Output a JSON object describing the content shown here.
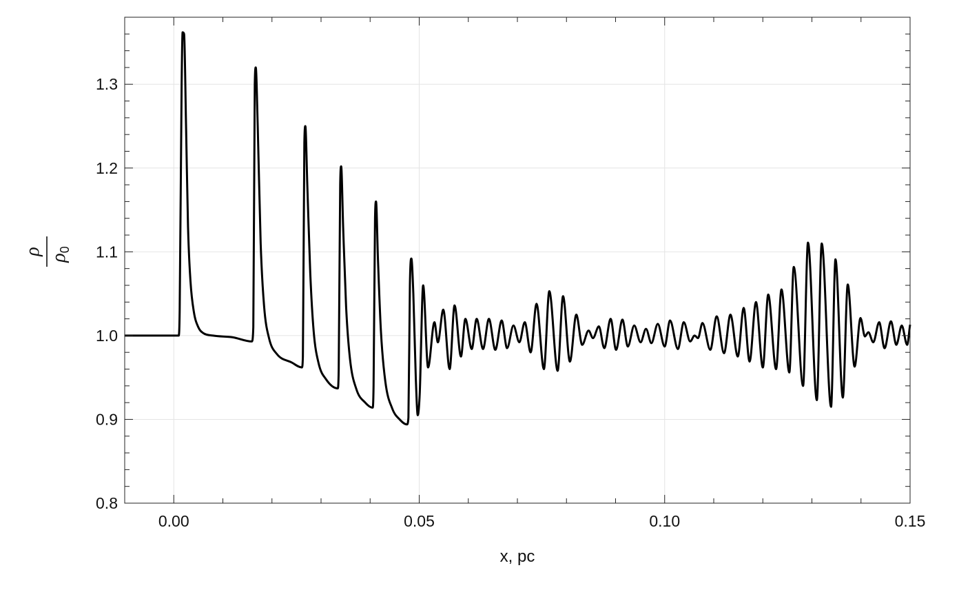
{
  "chart_data": {
    "type": "line",
    "title": "",
    "xlabel": "x, pc",
    "ylabel": {
      "numerator": "ρ",
      "denominator": "ρ",
      "denominator_subscript": "0"
    },
    "xlim": [
      -0.01,
      0.15
    ],
    "ylim": [
      0.8,
      1.38
    ],
    "x_ticks": [
      0.0,
      0.05,
      0.1,
      0.15
    ],
    "x_tick_labels": [
      "0.00",
      "0.05",
      "0.10",
      "0.15"
    ],
    "y_ticks": [
      0.8,
      0.9,
      1.0,
      1.1,
      1.2,
      1.3
    ],
    "y_tick_labels": [
      "0.8",
      "0.9",
      "1.0",
      "1.1",
      "1.2",
      "1.3"
    ],
    "grid": true,
    "line_color": "#000000",
    "grid_color": "#e4e4e4",
    "series": [
      {
        "points": [
          [
            -0.01,
            1.0
          ],
          [
            0.001,
            1.0
          ],
          [
            0.0012,
            1.03
          ],
          [
            0.0016,
            1.3
          ],
          [
            0.0018,
            1.362
          ],
          [
            0.0021,
            1.36
          ],
          [
            0.0025,
            1.25
          ],
          [
            0.0029,
            1.13
          ],
          [
            0.0034,
            1.065
          ],
          [
            0.0041,
            1.028
          ],
          [
            0.005,
            1.01
          ],
          [
            0.006,
            1.003
          ],
          [
            0.008,
            1.0
          ],
          [
            0.012,
            0.998
          ],
          [
            0.0159,
            0.993
          ],
          [
            0.0162,
            1.01
          ],
          [
            0.0165,
            1.3
          ],
          [
            0.0167,
            1.32
          ],
          [
            0.0171,
            1.25
          ],
          [
            0.0177,
            1.11
          ],
          [
            0.0184,
            1.035
          ],
          [
            0.0194,
            0.997
          ],
          [
            0.021,
            0.978
          ],
          [
            0.024,
            0.968
          ],
          [
            0.0261,
            0.962
          ],
          [
            0.0263,
            0.975
          ],
          [
            0.0266,
            1.23
          ],
          [
            0.0268,
            1.25
          ],
          [
            0.0272,
            1.18
          ],
          [
            0.0278,
            1.075
          ],
          [
            0.0285,
            1.005
          ],
          [
            0.0295,
            0.967
          ],
          [
            0.031,
            0.948
          ],
          [
            0.0334,
            0.937
          ],
          [
            0.0336,
            0.96
          ],
          [
            0.0339,
            1.18
          ],
          [
            0.0341,
            1.202
          ],
          [
            0.0345,
            1.13
          ],
          [
            0.0351,
            1.035
          ],
          [
            0.0359,
            0.972
          ],
          [
            0.0372,
            0.936
          ],
          [
            0.039,
            0.92
          ],
          [
            0.0405,
            0.914
          ],
          [
            0.0407,
            0.94
          ],
          [
            0.041,
            1.14
          ],
          [
            0.0412,
            1.16
          ],
          [
            0.0416,
            1.09
          ],
          [
            0.0422,
            1.005
          ],
          [
            0.0431,
            0.945
          ],
          [
            0.0445,
            0.913
          ],
          [
            0.046,
            0.9
          ],
          [
            0.0475,
            0.894
          ],
          [
            0.0478,
            0.902
          ],
          [
            0.0481,
            1.06
          ],
          [
            0.0484,
            1.092
          ],
          [
            0.0488,
            1.05
          ],
          [
            0.0493,
            0.95
          ],
          [
            0.0497,
            0.905
          ],
          [
            0.0501,
            0.93
          ],
          [
            0.0508,
            1.06
          ],
          [
            0.0518,
            0.962
          ],
          [
            0.0531,
            1.016
          ],
          [
            0.0538,
            0.992
          ],
          [
            0.0549,
            1.031
          ],
          [
            0.0562,
            0.96
          ],
          [
            0.0572,
            1.036
          ],
          [
            0.0585,
            0.975
          ],
          [
            0.0594,
            1.02
          ],
          [
            0.0607,
            0.984
          ],
          [
            0.0617,
            1.02
          ],
          [
            0.063,
            0.984
          ],
          [
            0.0642,
            1.02
          ],
          [
            0.0655,
            0.983
          ],
          [
            0.0668,
            1.018
          ],
          [
            0.0679,
            0.985
          ],
          [
            0.0692,
            1.012
          ],
          [
            0.0704,
            0.992
          ],
          [
            0.0715,
            1.016
          ],
          [
            0.0727,
            0.98
          ],
          [
            0.0739,
            1.038
          ],
          [
            0.0754,
            0.96
          ],
          [
            0.0765,
            1.053
          ],
          [
            0.0782,
            0.958
          ],
          [
            0.0793,
            1.047
          ],
          [
            0.0807,
            0.969
          ],
          [
            0.082,
            1.025
          ],
          [
            0.0832,
            0.989
          ],
          [
            0.0845,
            1.006
          ],
          [
            0.0854,
            0.997
          ],
          [
            0.0866,
            1.011
          ],
          [
            0.0877,
            0.985
          ],
          [
            0.089,
            1.02
          ],
          [
            0.0901,
            0.983
          ],
          [
            0.0914,
            1.019
          ],
          [
            0.0925,
            0.987
          ],
          [
            0.0938,
            1.012
          ],
          [
            0.0951,
            0.992
          ],
          [
            0.0962,
            1.008
          ],
          [
            0.0973,
            0.991
          ],
          [
            0.0986,
            1.014
          ],
          [
            0.1,
            0.987
          ],
          [
            0.1011,
            1.018
          ],
          [
            0.1027,
            0.984
          ],
          [
            0.1039,
            1.016
          ],
          [
            0.1052,
            0.993
          ],
          [
            0.1061,
            1.0
          ],
          [
            0.1068,
            0.997
          ],
          [
            0.1077,
            1.015
          ],
          [
            0.1093,
            0.983
          ],
          [
            0.1106,
            1.023
          ],
          [
            0.1121,
            0.979
          ],
          [
            0.1134,
            1.025
          ],
          [
            0.1149,
            0.975
          ],
          [
            0.1161,
            1.033
          ],
          [
            0.1173,
            0.969
          ],
          [
            0.1186,
            1.04
          ],
          [
            0.12,
            0.962
          ],
          [
            0.1211,
            1.049
          ],
          [
            0.1227,
            0.96
          ],
          [
            0.1238,
            1.055
          ],
          [
            0.1254,
            0.956
          ],
          [
            0.1263,
            1.082
          ],
          [
            0.1282,
            0.94
          ],
          [
            0.1292,
            1.111
          ],
          [
            0.131,
            0.923
          ],
          [
            0.132,
            1.11
          ],
          [
            0.1339,
            0.915
          ],
          [
            0.1348,
            1.091
          ],
          [
            0.1363,
            0.926
          ],
          [
            0.1373,
            1.061
          ],
          [
            0.1387,
            0.963
          ],
          [
            0.1399,
            1.021
          ],
          [
            0.1408,
            0.999
          ],
          [
            0.1415,
            1.004
          ],
          [
            0.1425,
            0.992
          ],
          [
            0.1437,
            1.016
          ],
          [
            0.1448,
            0.985
          ],
          [
            0.1461,
            1.017
          ],
          [
            0.1472,
            0.989
          ],
          [
            0.1483,
            1.012
          ],
          [
            0.1494,
            0.989
          ],
          [
            0.15,
            1.013
          ]
        ]
      }
    ]
  }
}
